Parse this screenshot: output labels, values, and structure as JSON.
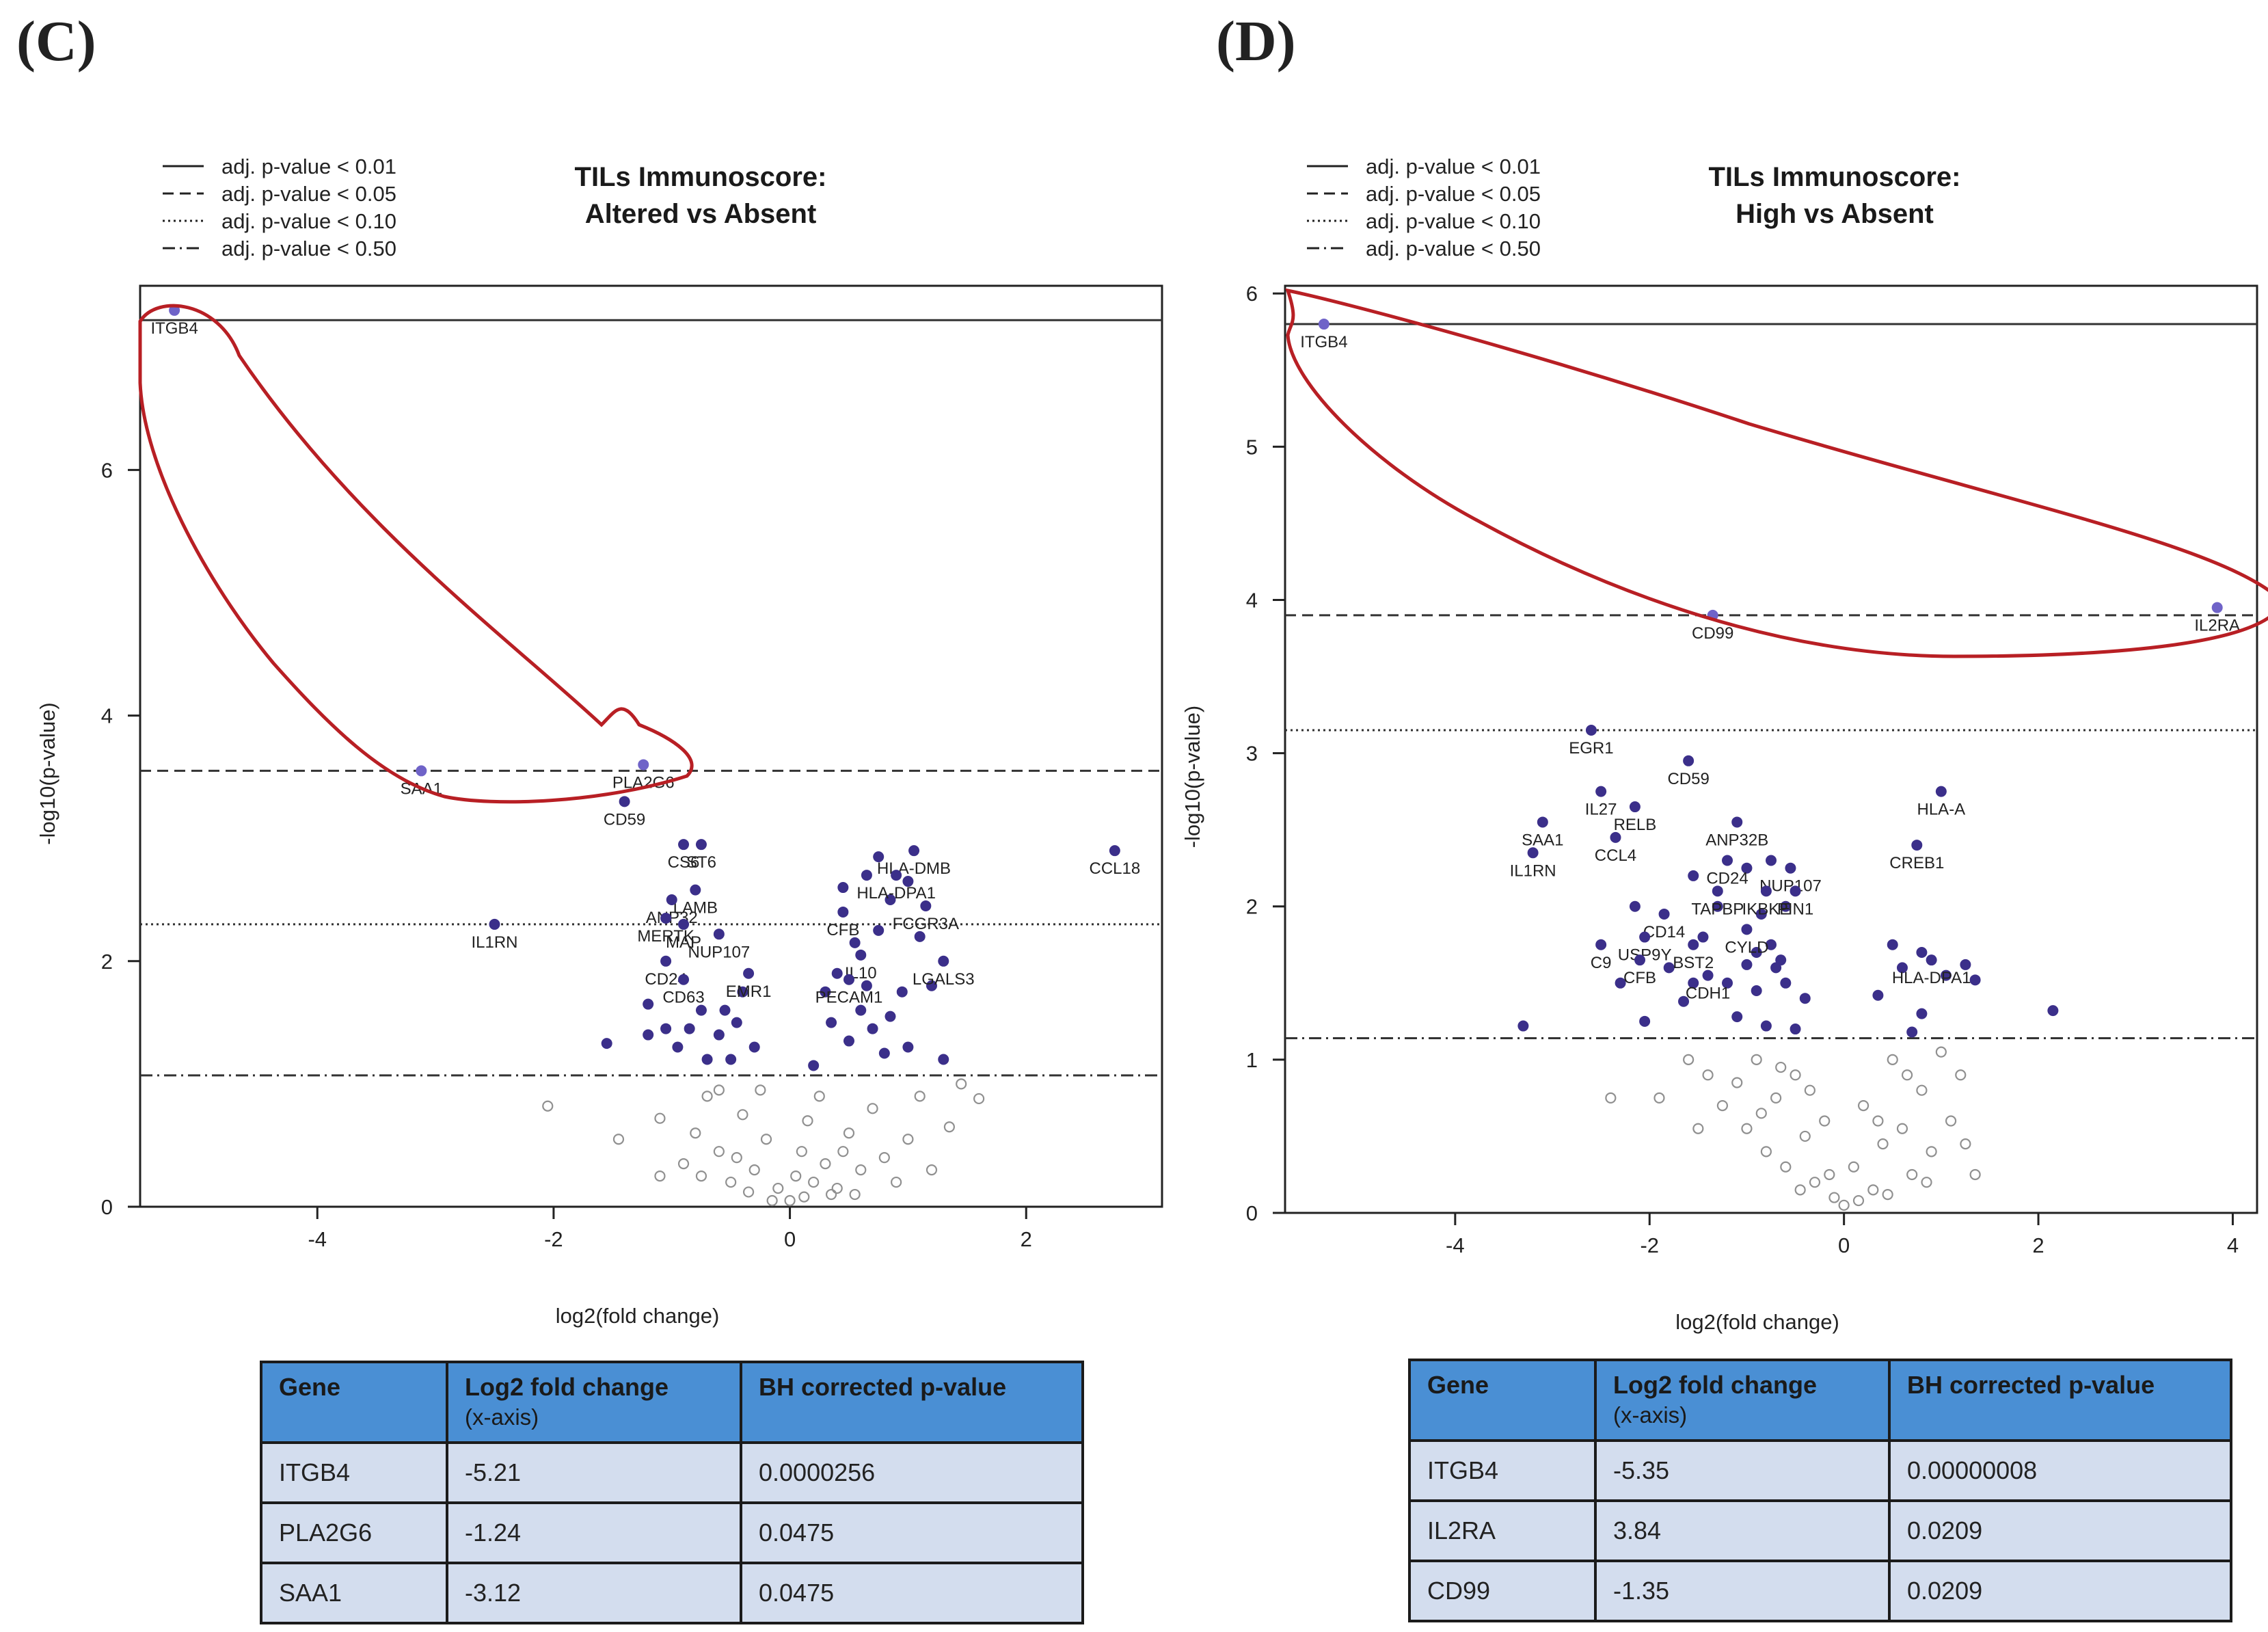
{
  "colors": {
    "sig": "#3b2f8a",
    "sig_light": "#6f63c8",
    "nonsig": "#909090",
    "highlight": "#b81f24",
    "table_header": "#4a8fd4",
    "table_row": "#d3ddee"
  },
  "panels": [
    {
      "label": "(C)",
      "title_lines": [
        "TILs Immunoscore:",
        "Altered vs Absent"
      ],
      "legend": [
        {
          "style": "solid",
          "text": "adj. p-value < 0.01"
        },
        {
          "style": "dashed",
          "text": "adj. p-value < 0.05"
        },
        {
          "style": "dotted",
          "text": "adj. p-value < 0.10"
        },
        {
          "style": "dashdot",
          "text": "adj. p-value < 0.50"
        }
      ],
      "table": {
        "headers": [
          "Gene",
          "Log2 fold change",
          "BH corrected p-value"
        ],
        "header_sub": "(x-axis)",
        "rows": [
          [
            "ITGB4",
            "-5.21",
            "0.0000256"
          ],
          [
            "PLA2G6",
            "-1.24",
            "0.0475"
          ],
          [
            "SAA1",
            "-3.12",
            "0.0475"
          ]
        ]
      }
    },
    {
      "label": "(D)",
      "title_lines": [
        "TILs Immunoscore:",
        "High vs Absent"
      ],
      "legend": [
        {
          "style": "solid",
          "text": "adj. p-value < 0.01"
        },
        {
          "style": "dashed",
          "text": "adj. p-value < 0.05"
        },
        {
          "style": "dotted",
          "text": "adj. p-value < 0.10"
        },
        {
          "style": "dashdot",
          "text": "adj. p-value < 0.50"
        }
      ],
      "table": {
        "headers": [
          "Gene",
          "Log2 fold change",
          "BH corrected p-value"
        ],
        "header_sub": "(x-axis)",
        "rows": [
          [
            "ITGB4",
            "-5.35",
            "0.00000008"
          ],
          [
            "IL2RA",
            "3.84",
            "0.0209"
          ],
          [
            "CD99",
            "-1.35",
            "0.0209"
          ]
        ]
      }
    }
  ],
  "chart_data": [
    {
      "type": "scatter",
      "title": "TILs Immunoscore: Altered vs Absent",
      "xlabel": "log2(fold change)",
      "ylabel": "-log10(p-value)",
      "xlim": [
        -5.5,
        3.15
      ],
      "ylim": [
        0,
        7.5
      ],
      "xticks": [
        -4,
        -2,
        0,
        2
      ],
      "yticks": [
        0,
        2,
        4,
        6
      ],
      "thresholds": [
        {
          "label": "adj. p-value < 0.01",
          "y": 7.22,
          "style": "solid"
        },
        {
          "label": "adj. p-value < 0.05",
          "y": 3.55,
          "style": "dashed"
        },
        {
          "label": "adj. p-value < 0.10",
          "y": 2.3,
          "style": "dotted"
        },
        {
          "label": "adj. p-value < 0.50",
          "y": 1.07,
          "style": "dashdot"
        }
      ],
      "highlight_genes": [
        "ITGB4",
        "PLA2G6",
        "SAA1"
      ],
      "labeled_points": [
        {
          "gene": "ITGB4",
          "x": -5.21,
          "y": 7.3
        },
        {
          "gene": "SAA1",
          "x": -3.12,
          "y": 3.55
        },
        {
          "gene": "PLA2G6",
          "x": -1.24,
          "y": 3.6
        },
        {
          "gene": "CD59",
          "x": -1.4,
          "y": 3.3
        },
        {
          "gene": "IL1RN",
          "x": -2.5,
          "y": 2.3
        },
        {
          "gene": "CS6",
          "x": -0.9,
          "y": 2.95
        },
        {
          "gene": "ST6",
          "x": -0.75,
          "y": 2.95
        },
        {
          "gene": "LAMB",
          "x": -0.8,
          "y": 2.58
        },
        {
          "gene": "ANP32",
          "x": -1.0,
          "y": 2.5
        },
        {
          "gene": "MERTK",
          "x": -1.05,
          "y": 2.35
        },
        {
          "gene": "MAP",
          "x": -0.9,
          "y": 2.3
        },
        {
          "gene": "NUP107",
          "x": -0.6,
          "y": 2.22
        },
        {
          "gene": "CD24",
          "x": -1.05,
          "y": 2.0
        },
        {
          "gene": "CD63",
          "x": -0.9,
          "y": 1.85
        },
        {
          "gene": "EMR1",
          "x": -0.35,
          "y": 1.9
        },
        {
          "gene": "HLA-DMB",
          "x": 1.05,
          "y": 2.9
        },
        {
          "gene": "HLA-DPA1",
          "x": 0.9,
          "y": 2.7
        },
        {
          "gene": "FCGR3A",
          "x": 1.15,
          "y": 2.45
        },
        {
          "gene": "CFB",
          "x": 0.45,
          "y": 2.4
        },
        {
          "gene": "IL10",
          "x": 0.6,
          "y": 2.05
        },
        {
          "gene": "LGALS3",
          "x": 1.3,
          "y": 2.0
        },
        {
          "gene": "PECAM1",
          "x": 0.5,
          "y": 1.85
        },
        {
          "gene": "CCL18",
          "x": 2.75,
          "y": 2.9
        }
      ],
      "sig_points": [
        [
          -1.55,
          1.33
        ],
        [
          -1.05,
          1.45
        ],
        [
          -0.95,
          1.3
        ],
        [
          -0.85,
          1.45
        ],
        [
          -1.2,
          1.65
        ],
        [
          -0.75,
          1.6
        ],
        [
          -0.6,
          1.4
        ],
        [
          -0.55,
          1.6
        ],
        [
          -0.45,
          1.5
        ],
        [
          -0.4,
          1.75
        ],
        [
          -0.7,
          1.2
        ],
        [
          -0.5,
          1.2
        ],
        [
          -0.3,
          1.3
        ],
        [
          0.35,
          1.5
        ],
        [
          0.5,
          1.35
        ],
        [
          0.6,
          1.6
        ],
        [
          0.7,
          1.45
        ],
        [
          0.8,
          1.25
        ],
        [
          0.85,
          1.55
        ],
        [
          0.95,
          1.75
        ],
        [
          1.0,
          1.3
        ],
        [
          0.65,
          1.8
        ],
        [
          0.3,
          1.75
        ],
        [
          1.3,
          1.2
        ],
        [
          0.55,
          2.15
        ],
        [
          0.75,
          2.25
        ],
        [
          0.85,
          2.5
        ],
        [
          0.65,
          2.7
        ],
        [
          0.45,
          2.6
        ],
        [
          1.1,
          2.2
        ],
        [
          1.2,
          1.8
        ],
        [
          0.2,
          1.15
        ],
        [
          -1.2,
          1.4
        ],
        [
          0.4,
          1.9
        ],
        [
          0.75,
          2.85
        ],
        [
          1.0,
          2.65
        ]
      ],
      "nonsig_points": [
        [
          -2.05,
          0.82
        ],
        [
          -1.45,
          0.55
        ],
        [
          -1.1,
          0.72
        ],
        [
          -1.1,
          0.25
        ],
        [
          -0.9,
          0.35
        ],
        [
          -0.8,
          0.6
        ],
        [
          -0.7,
          0.9
        ],
        [
          -0.6,
          0.45
        ],
        [
          -0.5,
          0.2
        ],
        [
          -0.4,
          0.75
        ],
        [
          -0.3,
          0.3
        ],
        [
          -0.2,
          0.55
        ],
        [
          -0.1,
          0.15
        ],
        [
          0.0,
          0.05
        ],
        [
          0.05,
          0.25
        ],
        [
          0.1,
          0.45
        ],
        [
          0.15,
          0.7
        ],
        [
          0.2,
          0.2
        ],
        [
          0.25,
          0.9
        ],
        [
          0.3,
          0.35
        ],
        [
          0.4,
          0.15
        ],
        [
          0.5,
          0.6
        ],
        [
          0.6,
          0.3
        ],
        [
          0.7,
          0.8
        ],
        [
          0.8,
          0.4
        ],
        [
          0.9,
          0.2
        ],
        [
          1.0,
          0.55
        ],
        [
          1.1,
          0.9
        ],
        [
          1.2,
          0.3
        ],
        [
          1.35,
          0.65
        ],
        [
          1.45,
          1.0
        ],
        [
          1.6,
          0.88
        ],
        [
          -0.15,
          0.05
        ],
        [
          0.12,
          0.08
        ],
        [
          -0.35,
          0.12
        ],
        [
          0.35,
          0.1
        ],
        [
          -0.6,
          0.95
        ],
        [
          -0.25,
          0.95
        ],
        [
          0.55,
          0.1
        ],
        [
          -0.75,
          0.25
        ],
        [
          0.45,
          0.45
        ],
        [
          -0.45,
          0.4
        ]
      ]
    },
    {
      "type": "scatter",
      "title": "TILs Immunoscore: High vs Absent",
      "xlabel": "log2(fold change)",
      "ylabel": "-log10(p-value)",
      "xlim": [
        -5.75,
        4.25
      ],
      "ylim": [
        0,
        6.05
      ],
      "xticks": [
        -4,
        -2,
        0,
        2,
        4
      ],
      "yticks": [
        0,
        1,
        2,
        3,
        4,
        5,
        6
      ],
      "thresholds": [
        {
          "label": "adj. p-value < 0.01",
          "y": 5.8,
          "style": "solid"
        },
        {
          "label": "adj. p-value < 0.05",
          "y": 3.9,
          "style": "dashed"
        },
        {
          "label": "adj. p-value < 0.10",
          "y": 3.15,
          "style": "dotted"
        },
        {
          "label": "adj. p-value < 0.50",
          "y": 1.14,
          "style": "dashdot"
        }
      ],
      "highlight_genes": [
        "ITGB4",
        "IL2RA",
        "CD99"
      ],
      "labeled_points": [
        {
          "gene": "ITGB4",
          "x": -5.35,
          "y": 5.8
        },
        {
          "gene": "CD99",
          "x": -1.35,
          "y": 3.9
        },
        {
          "gene": "IL2RA",
          "x": 3.84,
          "y": 3.95
        },
        {
          "gene": "EGR1",
          "x": -2.6,
          "y": 3.15
        },
        {
          "gene": "CD59",
          "x": -1.6,
          "y": 2.95
        },
        {
          "gene": "IL27",
          "x": -2.5,
          "y": 2.75
        },
        {
          "gene": "RELB",
          "x": -2.15,
          "y": 2.65
        },
        {
          "gene": "SAA1",
          "x": -3.1,
          "y": 2.55
        },
        {
          "gene": "CCL4",
          "x": -2.35,
          "y": 2.45
        },
        {
          "gene": "IL1RN",
          "x": -3.2,
          "y": 2.35
        },
        {
          "gene": "ANP32B",
          "x": -1.1,
          "y": 2.55
        },
        {
          "gene": "CD24",
          "x": -1.2,
          "y": 2.3
        },
        {
          "gene": "NUP107",
          "x": -0.55,
          "y": 2.25
        },
        {
          "gene": "TAPBP",
          "x": -1.3,
          "y": 2.1
        },
        {
          "gene": "IKBKE",
          "x": -0.8,
          "y": 2.1
        },
        {
          "gene": "PIN1",
          "x": -0.5,
          "y": 2.1
        },
        {
          "gene": "CD14",
          "x": -1.85,
          "y": 1.95
        },
        {
          "gene": "USP9Y",
          "x": -2.05,
          "y": 1.8
        },
        {
          "gene": "CYLD",
          "x": -1.0,
          "y": 1.85
        },
        {
          "gene": "BST2",
          "x": -1.55,
          "y": 1.75
        },
        {
          "gene": "C9",
          "x": -2.5,
          "y": 1.75
        },
        {
          "gene": "CFB",
          "x": -2.1,
          "y": 1.65
        },
        {
          "gene": "CDH1",
          "x": -1.4,
          "y": 1.55
        },
        {
          "gene": "HLA-A",
          "x": 1.0,
          "y": 2.75
        },
        {
          "gene": "CREB1",
          "x": 0.75,
          "y": 2.4
        },
        {
          "gene": "HLA-DPA1",
          "x": 0.9,
          "y": 1.65
        }
      ],
      "sig_points": [
        [
          -3.3,
          1.22
        ],
        [
          -2.3,
          1.5
        ],
        [
          -2.05,
          1.25
        ],
        [
          -1.8,
          1.6
        ],
        [
          -1.65,
          1.38
        ],
        [
          -1.55,
          1.5
        ],
        [
          -1.2,
          1.5
        ],
        [
          -1.1,
          1.28
        ],
        [
          -0.9,
          1.45
        ],
        [
          -0.8,
          1.22
        ],
        [
          -0.7,
          1.6
        ],
        [
          -0.6,
          1.5
        ],
        [
          -0.5,
          1.2
        ],
        [
          -0.4,
          1.4
        ],
        [
          -0.9,
          1.7
        ],
        [
          -0.75,
          1.75
        ],
        [
          -0.65,
          1.65
        ],
        [
          -1.0,
          1.62
        ],
        [
          0.35,
          1.42
        ],
        [
          0.6,
          1.6
        ],
        [
          0.7,
          1.18
        ],
        [
          0.8,
          1.3
        ],
        [
          1.05,
          1.55
        ],
        [
          1.25,
          1.62
        ],
        [
          1.35,
          1.52
        ],
        [
          2.15,
          1.32
        ],
        [
          0.5,
          1.75
        ],
        [
          0.8,
          1.7
        ],
        [
          -1.3,
          2.0
        ],
        [
          -1.0,
          2.25
        ],
        [
          -0.75,
          2.3
        ],
        [
          -2.15,
          2.0
        ],
        [
          -1.55,
          2.2
        ],
        [
          -0.6,
          2.0
        ],
        [
          -1.45,
          1.8
        ],
        [
          -0.85,
          1.95
        ]
      ],
      "nonsig_points": [
        [
          -2.4,
          0.75
        ],
        [
          -1.9,
          0.75
        ],
        [
          -1.6,
          1.0
        ],
        [
          -1.4,
          0.9
        ],
        [
          -1.25,
          0.7
        ],
        [
          -1.1,
          0.85
        ],
        [
          -1.0,
          0.55
        ],
        [
          -0.9,
          1.0
        ],
        [
          -0.8,
          0.4
        ],
        [
          -0.7,
          0.75
        ],
        [
          -0.6,
          0.3
        ],
        [
          -0.5,
          0.9
        ],
        [
          -0.4,
          0.5
        ],
        [
          -0.3,
          0.2
        ],
        [
          -0.2,
          0.6
        ],
        [
          -0.1,
          0.1
        ],
        [
          0.0,
          0.05
        ],
        [
          0.1,
          0.3
        ],
        [
          0.2,
          0.7
        ],
        [
          0.3,
          0.15
        ],
        [
          0.4,
          0.45
        ],
        [
          0.5,
          1.0
        ],
        [
          0.6,
          0.55
        ],
        [
          0.7,
          0.25
        ],
        [
          0.8,
          0.8
        ],
        [
          0.9,
          0.4
        ],
        [
          1.0,
          1.05
        ],
        [
          1.1,
          0.6
        ],
        [
          1.2,
          0.9
        ],
        [
          1.35,
          0.25
        ],
        [
          -0.15,
          0.25
        ],
        [
          0.15,
          0.08
        ],
        [
          -0.45,
          0.15
        ],
        [
          0.45,
          0.12
        ],
        [
          -0.85,
          0.65
        ],
        [
          0.65,
          0.9
        ],
        [
          -1.5,
          0.55
        ],
        [
          1.25,
          0.45
        ],
        [
          -0.35,
          0.8
        ],
        [
          0.35,
          0.6
        ],
        [
          -0.65,
          0.95
        ],
        [
          0.85,
          0.2
        ]
      ]
    }
  ]
}
